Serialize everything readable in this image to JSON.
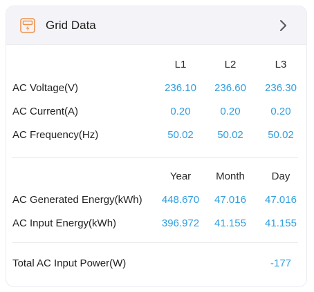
{
  "header": {
    "title": "Grid Data",
    "icon": "grid-meter-icon",
    "chevron": "chevron-right-icon",
    "accent_color": "#f0914a"
  },
  "phases": {
    "columns": [
      "L1",
      "L2",
      "L3"
    ],
    "rows": [
      {
        "label": "AC Voltage(V)",
        "values": [
          "236.10",
          "236.60",
          "236.30"
        ]
      },
      {
        "label": "AC Current(A)",
        "values": [
          "0.20",
          "0.20",
          "0.20"
        ]
      },
      {
        "label": "AC Frequency(Hz)",
        "values": [
          "50.02",
          "50.02",
          "50.02"
        ]
      }
    ]
  },
  "energy": {
    "columns": [
      "Year",
      "Month",
      "Day"
    ],
    "rows": [
      {
        "label": "AC Generated Energy(kWh)",
        "values": [
          "448.670",
          "47.016",
          "47.016"
        ]
      },
      {
        "label": "AC Input Energy(kWh)",
        "values": [
          "396.972",
          "41.155",
          "41.155"
        ]
      }
    ]
  },
  "total": {
    "label": "Total AC Input Power(W)",
    "value": "-177"
  },
  "colors": {
    "value_blue": "#2f9fe0",
    "label_text": "#222222",
    "header_bg": "#f4f4f8"
  }
}
